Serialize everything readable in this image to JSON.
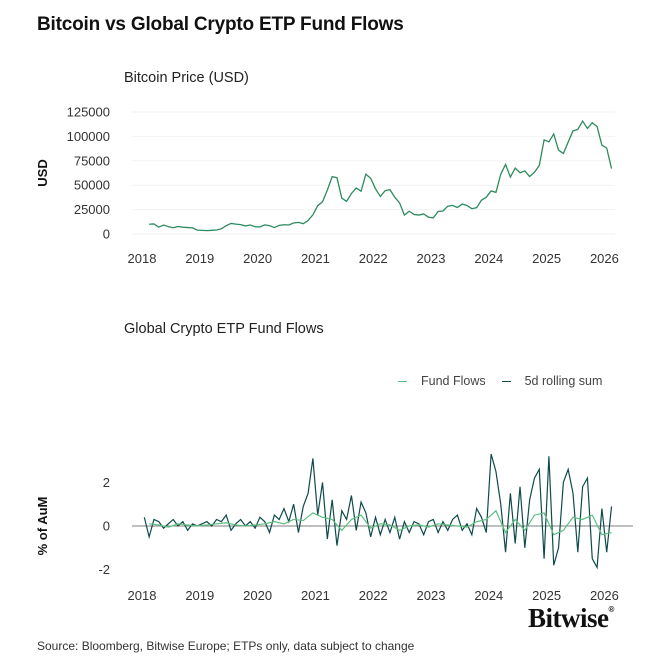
{
  "title": "Bitcoin vs Global Crypto ETP Fund Flows",
  "logo": "Bitwise",
  "logo_mark": "®",
  "source": "Source: Bloomberg, Bitwise Europe; ETPs only, data subject to change",
  "colors": {
    "price": "#2e8b5e",
    "fund_flows": "#5cbf7f",
    "rolling_sum": "#0f4a4a",
    "zero_line": "#555555",
    "grid": "#f2f2f2"
  },
  "chart_data": [
    {
      "type": "line",
      "title": "Bitcoin Price (USD)",
      "ylabel": "USD",
      "xlabel": "",
      "xticks": [
        "2018",
        "2019",
        "2020",
        "2021",
        "2022",
        "2023",
        "2024",
        "2025",
        "2026"
      ],
      "yticks": [
        "0",
        "25000",
        "50000",
        "75000",
        "100000",
        "125000"
      ],
      "ylim": [
        0,
        125000
      ],
      "xlim": [
        "2018-01",
        "2026-01"
      ],
      "grid": true,
      "series": [
        {
          "x": [
            "2018-02",
            "2018-03",
            "2018-04",
            "2018-05",
            "2018-06",
            "2018-07",
            "2018-08",
            "2018-09",
            "2018-10",
            "2018-11",
            "2018-12",
            "2019-01",
            "2019-02",
            "2019-03",
            "2019-04",
            "2019-05",
            "2019-06",
            "2019-07",
            "2019-08",
            "2019-09",
            "2019-10",
            "2019-11",
            "2019-12",
            "2020-01",
            "2020-02",
            "2020-03",
            "2020-04",
            "2020-05",
            "2020-06",
            "2020-07",
            "2020-08",
            "2020-09",
            "2020-10",
            "2020-11",
            "2020-12",
            "2021-01",
            "2021-02",
            "2021-03",
            "2021-04",
            "2021-05",
            "2021-06",
            "2021-07",
            "2021-08",
            "2021-09",
            "2021-10",
            "2021-11",
            "2021-12",
            "2022-01",
            "2022-02",
            "2022-03",
            "2022-04",
            "2022-05",
            "2022-06",
            "2022-07",
            "2022-08",
            "2022-09",
            "2022-10",
            "2022-11",
            "2022-12",
            "2023-01",
            "2023-02",
            "2023-03",
            "2023-04",
            "2023-05",
            "2023-06",
            "2023-07",
            "2023-08",
            "2023-09",
            "2023-10",
            "2023-11",
            "2023-12",
            "2024-01",
            "2024-02",
            "2024-03",
            "2024-04",
            "2024-05",
            "2024-06",
            "2024-07",
            "2024-08",
            "2024-09",
            "2024-10",
            "2024-11",
            "2024-12",
            "2025-01",
            "2025-02",
            "2025-03",
            "2025-04",
            "2025-05",
            "2025-06",
            "2025-07",
            "2025-08",
            "2025-09",
            "2025-10",
            "2025-11",
            "2025-12",
            "2026-01",
            "2026-02"
          ],
          "y": [
            10000,
            10300,
            7000,
            9200,
            7500,
            6400,
            7700,
            7000,
            6600,
            6300,
            4000,
            3700,
            3450,
            3800,
            4100,
            5300,
            8500,
            10800,
            10100,
            9600,
            8300,
            9200,
            7500,
            7200,
            9350,
            8600,
            6600,
            8800,
            9500,
            9200,
            11300,
            11900,
            10600,
            13800,
            19700,
            29000,
            33000,
            45000,
            58800,
            57700,
            36700,
            33500,
            41500,
            47100,
            43800,
            61300,
            57000,
            46300,
            38500,
            44400,
            45500,
            37700,
            31800,
            19400,
            23300,
            20000,
            19400,
            20500,
            17200,
            16600,
            23100,
            23600,
            28500,
            29300,
            27200,
            30600,
            29200,
            25900,
            27000,
            34700,
            37700,
            44200,
            42600,
            61200,
            71300,
            58300,
            67500,
            62700,
            64600,
            58900,
            63300,
            70200,
            96400,
            94400,
            102400,
            86000,
            82500,
            94200,
            105700,
            107100,
            115700,
            108200,
            114000,
            110000,
            91000,
            88000,
            67000
          ]
        }
      ]
    },
    {
      "type": "line",
      "title": "Global Crypto ETP Fund Flows",
      "ylabel": "% of AuM",
      "xlabel": "",
      "xticks": [
        "2018",
        "2019",
        "2020",
        "2021",
        "2022",
        "2023",
        "2024",
        "2025",
        "2026"
      ],
      "yticks": [
        "-2",
        "0",
        "2"
      ],
      "ylim": [
        -2.3,
        3.5
      ],
      "xlim": [
        "2018-01",
        "2026-01"
      ],
      "legend": "top-right",
      "series": [
        {
          "name": "Fund Flows",
          "x": [
            "2018-02",
            "2018-04",
            "2018-06",
            "2018-08",
            "2018-10",
            "2018-12",
            "2019-02",
            "2019-04",
            "2019-06",
            "2019-08",
            "2019-10",
            "2019-12",
            "2020-02",
            "2020-04",
            "2020-06",
            "2020-08",
            "2020-10",
            "2020-12",
            "2021-02",
            "2021-04",
            "2021-06",
            "2021-08",
            "2021-10",
            "2021-12",
            "2022-02",
            "2022-04",
            "2022-06",
            "2022-08",
            "2022-10",
            "2022-12",
            "2023-02",
            "2023-04",
            "2023-06",
            "2023-08",
            "2023-10",
            "2023-12",
            "2024-02",
            "2024-04",
            "2024-06",
            "2024-08",
            "2024-10",
            "2024-12",
            "2025-02",
            "2025-04",
            "2025-06",
            "2025-08",
            "2025-10",
            "2025-12",
            "2026-02"
          ],
          "y": [
            0.1,
            0.05,
            -0.05,
            0.1,
            0.05,
            0.0,
            0.05,
            0.1,
            0.15,
            0.05,
            0.0,
            0.05,
            0.1,
            0.2,
            0.1,
            0.3,
            0.25,
            0.6,
            0.4,
            0.3,
            -0.2,
            0.3,
            0.5,
            -0.1,
            0.1,
            0.05,
            -0.2,
            0.0,
            0.05,
            -0.05,
            0.1,
            0.05,
            0.0,
            -0.05,
            0.2,
            0.3,
            0.7,
            -0.3,
            0.3,
            -0.2,
            0.5,
            0.6,
            -0.4,
            -0.2,
            0.4,
            0.3,
            0.5,
            -0.4,
            -0.3
          ]
        },
        {
          "name": "5d rolling sum",
          "x": [
            "2018-01",
            "2018-02",
            "2018-03",
            "2018-04",
            "2018-05",
            "2018-06",
            "2018-07",
            "2018-08",
            "2018-09",
            "2018-10",
            "2018-11",
            "2018-12",
            "2019-01",
            "2019-02",
            "2019-03",
            "2019-04",
            "2019-05",
            "2019-06",
            "2019-07",
            "2019-08",
            "2019-09",
            "2019-10",
            "2019-11",
            "2019-12",
            "2020-01",
            "2020-02",
            "2020-03",
            "2020-04",
            "2020-05",
            "2020-06",
            "2020-07",
            "2020-08",
            "2020-09",
            "2020-10",
            "2020-11",
            "2020-12",
            "2021-01",
            "2021-02",
            "2021-03",
            "2021-04",
            "2021-05",
            "2021-06",
            "2021-07",
            "2021-08",
            "2021-09",
            "2021-10",
            "2021-11",
            "2021-12",
            "2022-01",
            "2022-02",
            "2022-03",
            "2022-04",
            "2022-05",
            "2022-06",
            "2022-07",
            "2022-08",
            "2022-09",
            "2022-10",
            "2022-11",
            "2022-12",
            "2023-01",
            "2023-02",
            "2023-03",
            "2023-04",
            "2023-05",
            "2023-06",
            "2023-07",
            "2023-08",
            "2023-09",
            "2023-10",
            "2023-11",
            "2023-12",
            "2024-01",
            "2024-02",
            "2024-03",
            "2024-04",
            "2024-05",
            "2024-06",
            "2024-07",
            "2024-08",
            "2024-09",
            "2024-10",
            "2024-11",
            "2024-12",
            "2025-01",
            "2025-02",
            "2025-03",
            "2025-04",
            "2025-05",
            "2025-06",
            "2025-07",
            "2025-08",
            "2025-09",
            "2025-10",
            "2025-11",
            "2025-12",
            "2026-01",
            "2026-02"
          ],
          "y": [
            0.4,
            -0.5,
            0.3,
            0.2,
            -0.1,
            0.1,
            0.3,
            0.0,
            0.2,
            -0.2,
            0.1,
            0.0,
            0.1,
            0.2,
            0.0,
            0.3,
            0.2,
            0.5,
            -0.2,
            0.1,
            0.3,
            0.0,
            0.2,
            -0.1,
            0.4,
            0.2,
            -0.3,
            0.5,
            0.3,
            0.8,
            0.2,
            1.0,
            -0.3,
            0.9,
            1.5,
            3.1,
            0.5,
            2.0,
            -0.6,
            1.2,
            -0.9,
            0.7,
            0.3,
            1.4,
            -0.2,
            1.1,
            0.6,
            -0.5,
            0.4,
            -0.4,
            0.3,
            -0.3,
            0.4,
            -0.6,
            0.2,
            -0.3,
            0.2,
            0.1,
            -0.4,
            0.2,
            0.3,
            -0.3,
            0.2,
            -0.2,
            0.3,
            0.5,
            -0.2,
            0.1,
            -0.4,
            0.8,
            0.4,
            -0.3,
            3.3,
            2.5,
            1.0,
            -1.2,
            1.5,
            -0.8,
            1.8,
            -1.0,
            1.2,
            2.2,
            2.6,
            -1.5,
            3.2,
            -1.8,
            -1.0,
            2.0,
            2.6,
            1.5,
            -1.2,
            1.8,
            2.2,
            -1.5,
            -1.9,
            0.8,
            -1.2,
            0.9
          ]
        }
      ]
    }
  ]
}
